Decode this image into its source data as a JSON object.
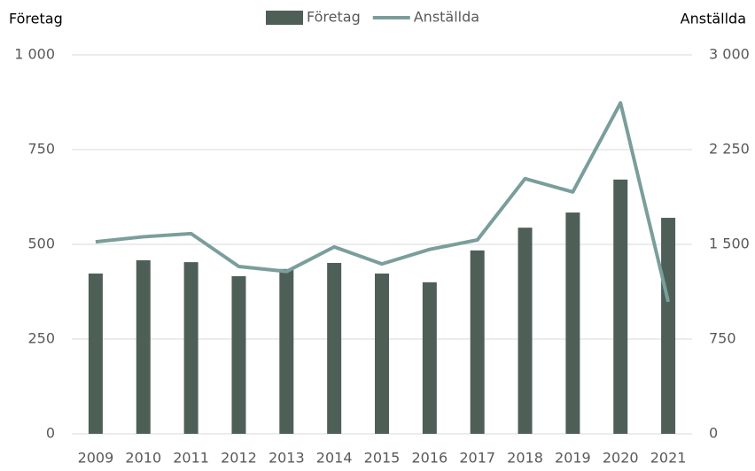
{
  "chart_data": {
    "type": "bar_line",
    "y_label": "Företag",
    "y2_label": "Anställda",
    "categories": [
      "2009",
      "2010",
      "2011",
      "2012",
      "2013",
      "2014",
      "2015",
      "2016",
      "2017",
      "2018",
      "2019",
      "2020",
      "2021"
    ],
    "series": [
      {
        "name": "Företag",
        "type": "bar",
        "color": "#4e5f58",
        "values": [
          423,
          458,
          453,
          416,
          435,
          451,
          423,
          400,
          484,
          544,
          584,
          671,
          570
        ]
      },
      {
        "name": "Anställda",
        "type": "line",
        "axis": "y2",
        "color": "#7a9e9b",
        "values": [
          1520,
          1560,
          1585,
          1325,
          1285,
          1480,
          1345,
          1460,
          1535,
          2020,
          1915,
          2620,
          1045
        ]
      }
    ],
    "ylim": [
      0,
      1000
    ],
    "yticks": [
      0,
      250,
      500,
      750,
      {
        "value": 1000,
        "label": "1 000"
      }
    ],
    "y2lim": [
      0,
      3000
    ],
    "y2ticks": [
      0,
      750,
      {
        "value": 1500,
        "label": "1 500"
      },
      {
        "value": 2250,
        "label": "2 250"
      },
      {
        "value": 3000,
        "label": "3 000"
      }
    ],
    "grid": true,
    "legend": "top"
  }
}
